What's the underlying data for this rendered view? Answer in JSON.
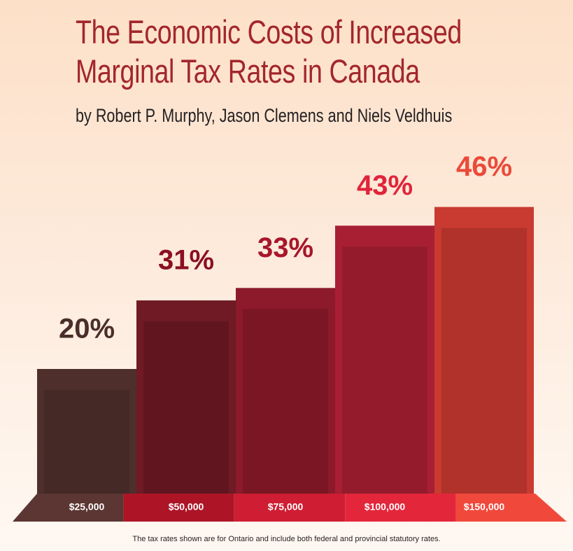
{
  "chart_data": {
    "type": "bar",
    "title": "The Economic Costs of Increased Marginal Tax Rates in Canada",
    "subtitle": "by Robert P. Murphy, Jason Clemens and Niels Veldhuis",
    "categories": [
      "$25,000",
      "$50,000",
      "$75,000",
      "$100,000",
      "$150,000"
    ],
    "values": [
      20,
      31,
      33,
      43,
      46
    ],
    "value_labels": [
      "20%",
      "31%",
      "33%",
      "43%",
      "46%"
    ],
    "colors": [
      "#4e2f2c",
      "#6f1a24",
      "#8c1a2a",
      "#a81f33",
      "#c93a30"
    ],
    "label_colors": [
      "#4a2e2b",
      "#8a1020",
      "#a8162a",
      "#e0243a",
      "#ea4a3a"
    ],
    "base_colors": [
      "#5b3633",
      "#ad1527",
      "#cf1d33",
      "#e4263b",
      "#f0493b"
    ],
    "footnote": "The tax rates shown are for Ontario and include both federal and provincial statutory rates."
  }
}
